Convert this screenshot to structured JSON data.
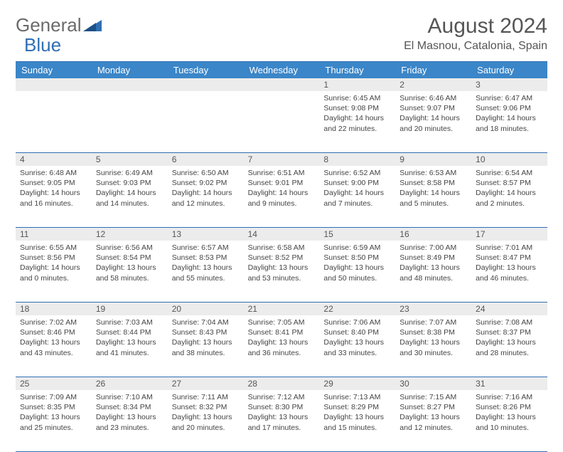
{
  "logo": {
    "part1": "General",
    "part2": "Blue"
  },
  "title": "August 2024",
  "location": "El Masnou, Catalonia, Spain",
  "colors": {
    "header_bg": "#3b86c8",
    "header_text": "#ffffff",
    "border": "#2f6fb3",
    "daynum_bg": "#ececec",
    "text": "#444444",
    "logo_gray": "#6a6a6a",
    "logo_blue": "#2f6fb3"
  },
  "day_names": [
    "Sunday",
    "Monday",
    "Tuesday",
    "Wednesday",
    "Thursday",
    "Friday",
    "Saturday"
  ],
  "weeks": [
    [
      {
        "n": "",
        "sr": "",
        "ss": "",
        "dl": ""
      },
      {
        "n": "",
        "sr": "",
        "ss": "",
        "dl": ""
      },
      {
        "n": "",
        "sr": "",
        "ss": "",
        "dl": ""
      },
      {
        "n": "",
        "sr": "",
        "ss": "",
        "dl": ""
      },
      {
        "n": "1",
        "sr": "Sunrise: 6:45 AM",
        "ss": "Sunset: 9:08 PM",
        "dl": "Daylight: 14 hours and 22 minutes."
      },
      {
        "n": "2",
        "sr": "Sunrise: 6:46 AM",
        "ss": "Sunset: 9:07 PM",
        "dl": "Daylight: 14 hours and 20 minutes."
      },
      {
        "n": "3",
        "sr": "Sunrise: 6:47 AM",
        "ss": "Sunset: 9:06 PM",
        "dl": "Daylight: 14 hours and 18 minutes."
      }
    ],
    [
      {
        "n": "4",
        "sr": "Sunrise: 6:48 AM",
        "ss": "Sunset: 9:05 PM",
        "dl": "Daylight: 14 hours and 16 minutes."
      },
      {
        "n": "5",
        "sr": "Sunrise: 6:49 AM",
        "ss": "Sunset: 9:03 PM",
        "dl": "Daylight: 14 hours and 14 minutes."
      },
      {
        "n": "6",
        "sr": "Sunrise: 6:50 AM",
        "ss": "Sunset: 9:02 PM",
        "dl": "Daylight: 14 hours and 12 minutes."
      },
      {
        "n": "7",
        "sr": "Sunrise: 6:51 AM",
        "ss": "Sunset: 9:01 PM",
        "dl": "Daylight: 14 hours and 9 minutes."
      },
      {
        "n": "8",
        "sr": "Sunrise: 6:52 AM",
        "ss": "Sunset: 9:00 PM",
        "dl": "Daylight: 14 hours and 7 minutes."
      },
      {
        "n": "9",
        "sr": "Sunrise: 6:53 AM",
        "ss": "Sunset: 8:58 PM",
        "dl": "Daylight: 14 hours and 5 minutes."
      },
      {
        "n": "10",
        "sr": "Sunrise: 6:54 AM",
        "ss": "Sunset: 8:57 PM",
        "dl": "Daylight: 14 hours and 2 minutes."
      }
    ],
    [
      {
        "n": "11",
        "sr": "Sunrise: 6:55 AM",
        "ss": "Sunset: 8:56 PM",
        "dl": "Daylight: 14 hours and 0 minutes."
      },
      {
        "n": "12",
        "sr": "Sunrise: 6:56 AM",
        "ss": "Sunset: 8:54 PM",
        "dl": "Daylight: 13 hours and 58 minutes."
      },
      {
        "n": "13",
        "sr": "Sunrise: 6:57 AM",
        "ss": "Sunset: 8:53 PM",
        "dl": "Daylight: 13 hours and 55 minutes."
      },
      {
        "n": "14",
        "sr": "Sunrise: 6:58 AM",
        "ss": "Sunset: 8:52 PM",
        "dl": "Daylight: 13 hours and 53 minutes."
      },
      {
        "n": "15",
        "sr": "Sunrise: 6:59 AM",
        "ss": "Sunset: 8:50 PM",
        "dl": "Daylight: 13 hours and 50 minutes."
      },
      {
        "n": "16",
        "sr": "Sunrise: 7:00 AM",
        "ss": "Sunset: 8:49 PM",
        "dl": "Daylight: 13 hours and 48 minutes."
      },
      {
        "n": "17",
        "sr": "Sunrise: 7:01 AM",
        "ss": "Sunset: 8:47 PM",
        "dl": "Daylight: 13 hours and 46 minutes."
      }
    ],
    [
      {
        "n": "18",
        "sr": "Sunrise: 7:02 AM",
        "ss": "Sunset: 8:46 PM",
        "dl": "Daylight: 13 hours and 43 minutes."
      },
      {
        "n": "19",
        "sr": "Sunrise: 7:03 AM",
        "ss": "Sunset: 8:44 PM",
        "dl": "Daylight: 13 hours and 41 minutes."
      },
      {
        "n": "20",
        "sr": "Sunrise: 7:04 AM",
        "ss": "Sunset: 8:43 PM",
        "dl": "Daylight: 13 hours and 38 minutes."
      },
      {
        "n": "21",
        "sr": "Sunrise: 7:05 AM",
        "ss": "Sunset: 8:41 PM",
        "dl": "Daylight: 13 hours and 36 minutes."
      },
      {
        "n": "22",
        "sr": "Sunrise: 7:06 AM",
        "ss": "Sunset: 8:40 PM",
        "dl": "Daylight: 13 hours and 33 minutes."
      },
      {
        "n": "23",
        "sr": "Sunrise: 7:07 AM",
        "ss": "Sunset: 8:38 PM",
        "dl": "Daylight: 13 hours and 30 minutes."
      },
      {
        "n": "24",
        "sr": "Sunrise: 7:08 AM",
        "ss": "Sunset: 8:37 PM",
        "dl": "Daylight: 13 hours and 28 minutes."
      }
    ],
    [
      {
        "n": "25",
        "sr": "Sunrise: 7:09 AM",
        "ss": "Sunset: 8:35 PM",
        "dl": "Daylight: 13 hours and 25 minutes."
      },
      {
        "n": "26",
        "sr": "Sunrise: 7:10 AM",
        "ss": "Sunset: 8:34 PM",
        "dl": "Daylight: 13 hours and 23 minutes."
      },
      {
        "n": "27",
        "sr": "Sunrise: 7:11 AM",
        "ss": "Sunset: 8:32 PM",
        "dl": "Daylight: 13 hours and 20 minutes."
      },
      {
        "n": "28",
        "sr": "Sunrise: 7:12 AM",
        "ss": "Sunset: 8:30 PM",
        "dl": "Daylight: 13 hours and 17 minutes."
      },
      {
        "n": "29",
        "sr": "Sunrise: 7:13 AM",
        "ss": "Sunset: 8:29 PM",
        "dl": "Daylight: 13 hours and 15 minutes."
      },
      {
        "n": "30",
        "sr": "Sunrise: 7:15 AM",
        "ss": "Sunset: 8:27 PM",
        "dl": "Daylight: 13 hours and 12 minutes."
      },
      {
        "n": "31",
        "sr": "Sunrise: 7:16 AM",
        "ss": "Sunset: 8:26 PM",
        "dl": "Daylight: 13 hours and 10 minutes."
      }
    ]
  ]
}
